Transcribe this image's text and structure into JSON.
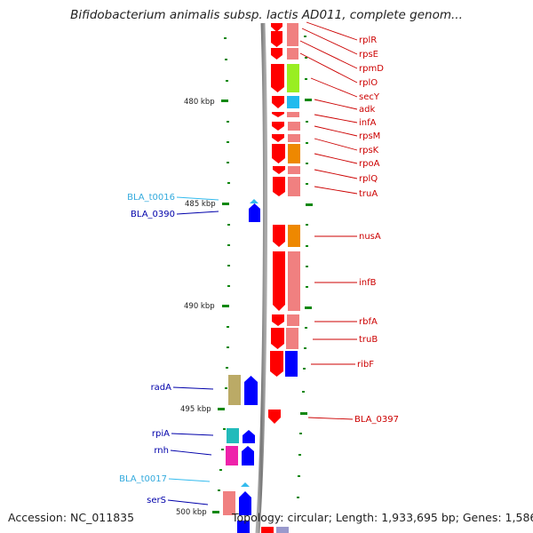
{
  "title": "Bifidobacterium animalis subsp. lactis AD011, complete genom...",
  "footer": {
    "accession": "Accession: NC_011835",
    "summary": "Topology: circular; Length: 1,933,695 bp; Genes: 1,586"
  },
  "ruler": {
    "labels": [
      "480 kbp",
      "485 kbp",
      "490 kbp",
      "495 kbp",
      "500 kbp"
    ]
  },
  "colors": {
    "forward_cds": "#ff0000",
    "forward_cds_light": "#f08080",
    "reverse_cds": "#0000ff",
    "trna": "#33bbee",
    "tick": "#118811",
    "backbone": "#888888"
  },
  "forward_genes": [
    "rplR",
    "rpsE",
    "rpmD",
    "rplO",
    "secY",
    "adk",
    "infA",
    "rpsM",
    "rpsK",
    "rpoA",
    "rplQ",
    "truA",
    "nusA",
    "infB",
    "rbfA",
    "truB",
    "ribF",
    "BLA_0397"
  ],
  "reverse_genes": [
    "BLA_t0016",
    "BLA_0390",
    "radA",
    "rpiA",
    "rnh",
    "BLA_t0017",
    "serS"
  ]
}
